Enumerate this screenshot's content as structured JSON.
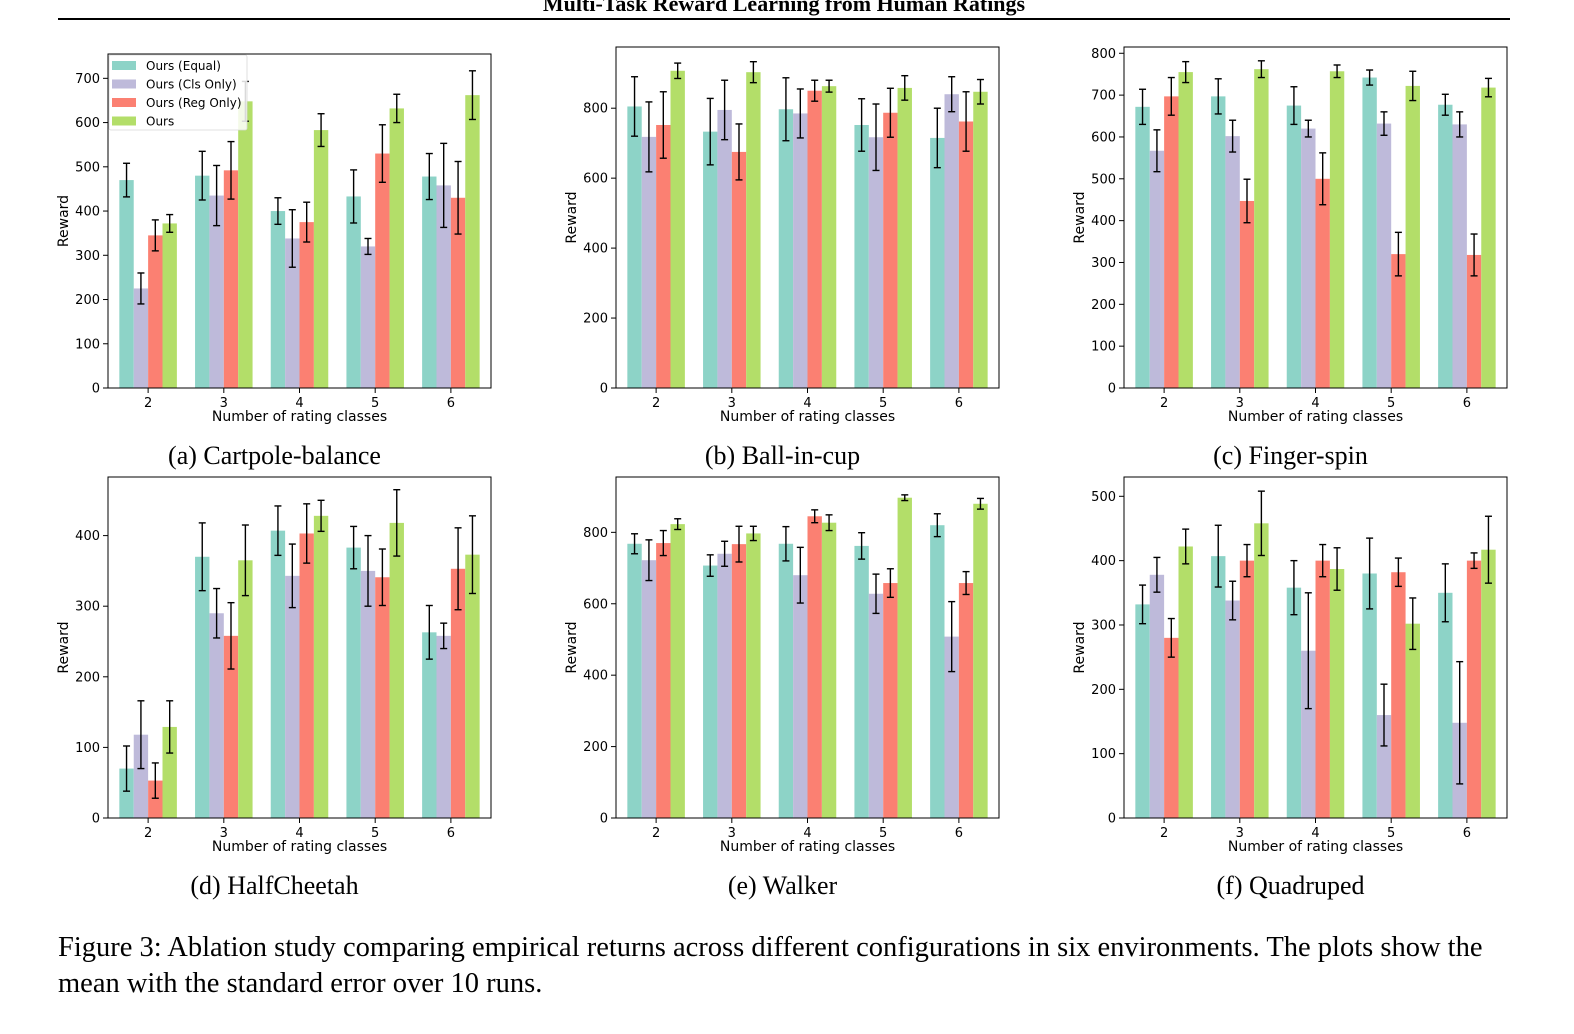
{
  "header": {
    "running_title": "Multi-Task Reward Learning from Human Ratings"
  },
  "legend": {
    "entries": [
      "Ours (Equal)",
      "Ours (Cls Only)",
      "Ours (Reg Only)",
      "Ours"
    ],
    "placement": "top-left",
    "shown_in": "Cartpole-balance"
  },
  "colors": {
    "series": [
      "#8dd3c7",
      "#bebada",
      "#fb8072",
      "#b3de69"
    ],
    "error_bar": "#000000",
    "axes": "#000000"
  },
  "chart_data": [
    {
      "type": "bar",
      "caption": "(a) Cartpole-balance",
      "xlabel": "Number of rating classes",
      "ylabel": "Reward",
      "categories": [
        "2",
        "3",
        "4",
        "5",
        "6"
      ],
      "ylim": [
        0,
        755
      ],
      "yticks": [
        0,
        100,
        200,
        300,
        400,
        500,
        600,
        700
      ],
      "legend": true,
      "series": [
        {
          "name": "Ours (Equal)",
          "values": [
            470,
            480,
            400,
            433,
            478
          ],
          "errors": [
            38,
            55,
            30,
            60,
            52
          ]
        },
        {
          "name": "Ours (Cls Only)",
          "values": [
            225,
            435,
            338,
            320,
            458
          ],
          "errors": [
            35,
            68,
            65,
            18,
            95
          ]
        },
        {
          "name": "Ours (Reg Only)",
          "values": [
            345,
            492,
            375,
            530,
            430
          ],
          "errors": [
            35,
            65,
            45,
            65,
            82
          ]
        },
        {
          "name": "Ours",
          "values": [
            372,
            648,
            583,
            632,
            662
          ],
          "errors": [
            20,
            45,
            37,
            32,
            55
          ]
        }
      ]
    },
    {
      "type": "bar",
      "caption": "(b) Ball-in-cup",
      "xlabel": "Number of rating classes",
      "ylabel": "Reward",
      "categories": [
        "2",
        "3",
        "4",
        "5",
        "6"
      ],
      "ylim": [
        0,
        975
      ],
      "yticks": [
        0,
        200,
        400,
        600,
        800
      ],
      "legend": false,
      "series": [
        {
          "name": "Ours (Equal)",
          "values": [
            805,
            733,
            797,
            752,
            715
          ],
          "errors": [
            85,
            95,
            90,
            75,
            85
          ]
        },
        {
          "name": "Ours (Cls Only)",
          "values": [
            718,
            795,
            785,
            717,
            840
          ],
          "errors": [
            100,
            85,
            70,
            95,
            50
          ]
        },
        {
          "name": "Ours (Reg Only)",
          "values": [
            752,
            675,
            850,
            787,
            762
          ],
          "errors": [
            95,
            80,
            30,
            70,
            85
          ]
        },
        {
          "name": "Ours",
          "values": [
            907,
            903,
            863,
            858,
            847
          ],
          "errors": [
            22,
            30,
            17,
            35,
            35
          ]
        }
      ]
    },
    {
      "type": "bar",
      "caption": "(c) Finger-spin",
      "xlabel": "Number of rating classes",
      "ylabel": "Reward",
      "categories": [
        "2",
        "3",
        "4",
        "5",
        "6"
      ],
      "ylim": [
        0,
        815
      ],
      "yticks": [
        0,
        100,
        200,
        300,
        400,
        500,
        600,
        700,
        800
      ],
      "legend": false,
      "series": [
        {
          "name": "Ours (Equal)",
          "values": [
            672,
            697,
            675,
            742,
            677
          ],
          "errors": [
            42,
            42,
            45,
            18,
            25
          ]
        },
        {
          "name": "Ours (Cls Only)",
          "values": [
            567,
            602,
            620,
            632,
            630
          ],
          "errors": [
            50,
            38,
            20,
            28,
            30
          ]
        },
        {
          "name": "Ours (Reg Only)",
          "values": [
            697,
            447,
            500,
            320,
            318
          ],
          "errors": [
            45,
            52,
            62,
            52,
            50
          ]
        },
        {
          "name": "Ours",
          "values": [
            755,
            762,
            757,
            722,
            718
          ],
          "errors": [
            25,
            20,
            15,
            35,
            22
          ]
        }
      ]
    },
    {
      "type": "bar",
      "caption": "(d) HalfCheetah",
      "xlabel": "Number of rating classes",
      "ylabel": "Reward",
      "categories": [
        "2",
        "3",
        "4",
        "5",
        "6"
      ],
      "ylim": [
        0,
        483
      ],
      "yticks": [
        0,
        100,
        200,
        300,
        400
      ],
      "legend": false,
      "series": [
        {
          "name": "Ours (Equal)",
          "values": [
            70,
            370,
            407,
            383,
            263
          ],
          "errors": [
            32,
            48,
            35,
            30,
            38
          ]
        },
        {
          "name": "Ours (Cls Only)",
          "values": [
            118,
            290,
            343,
            350,
            258
          ],
          "errors": [
            48,
            35,
            45,
            50,
            18
          ]
        },
        {
          "name": "Ours (Reg Only)",
          "values": [
            53,
            258,
            403,
            341,
            353
          ],
          "errors": [
            25,
            47,
            42,
            40,
            58
          ]
        },
        {
          "name": "Ours",
          "values": [
            129,
            365,
            428,
            418,
            373
          ],
          "errors": [
            37,
            50,
            22,
            47,
            55
          ]
        }
      ]
    },
    {
      "type": "bar",
      "caption": "(e) Walker",
      "xlabel": "Number of rating classes",
      "ylabel": "Reward",
      "categories": [
        "2",
        "3",
        "4",
        "5",
        "6"
      ],
      "ylim": [
        0,
        955
      ],
      "yticks": [
        0,
        200,
        400,
        600,
        800
      ],
      "legend": false,
      "series": [
        {
          "name": "Ours (Equal)",
          "values": [
            768,
            707,
            768,
            762,
            820
          ],
          "errors": [
            28,
            30,
            48,
            37,
            32
          ]
        },
        {
          "name": "Ours (Cls Only)",
          "values": [
            722,
            740,
            680,
            628,
            508
          ],
          "errors": [
            57,
            35,
            78,
            55,
            98
          ]
        },
        {
          "name": "Ours (Reg Only)",
          "values": [
            770,
            767,
            845,
            658,
            658
          ],
          "errors": [
            35,
            50,
            18,
            40,
            32
          ]
        },
        {
          "name": "Ours",
          "values": [
            823,
            797,
            827,
            897,
            880
          ],
          "errors": [
            15,
            20,
            22,
            8,
            15
          ]
        }
      ]
    },
    {
      "type": "bar",
      "caption": "(f) Quadruped",
      "xlabel": "Number of rating classes",
      "ylabel": "Reward",
      "categories": [
        "2",
        "3",
        "4",
        "5",
        "6"
      ],
      "ylim": [
        0,
        530
      ],
      "yticks": [
        0,
        100,
        200,
        300,
        400,
        500
      ],
      "legend": false,
      "series": [
        {
          "name": "Ours (Equal)",
          "values": [
            332,
            407,
            358,
            380,
            350
          ],
          "errors": [
            30,
            48,
            42,
            55,
            45
          ]
        },
        {
          "name": "Ours (Cls Only)",
          "values": [
            378,
            338,
            260,
            160,
            148
          ],
          "errors": [
            27,
            30,
            90,
            48,
            95
          ]
        },
        {
          "name": "Ours (Reg Only)",
          "values": [
            280,
            400,
            400,
            382,
            400
          ],
          "errors": [
            30,
            25,
            25,
            22,
            12
          ]
        },
        {
          "name": "Ours",
          "values": [
            422,
            458,
            387,
            302,
            417
          ],
          "errors": [
            27,
            50,
            33,
            40,
            52
          ]
        }
      ]
    }
  ],
  "caption": {
    "text": "Figure 3: Ablation study comparing empirical returns across different configurations in six environments. The plots show the mean with the standard error over 10 runs."
  }
}
